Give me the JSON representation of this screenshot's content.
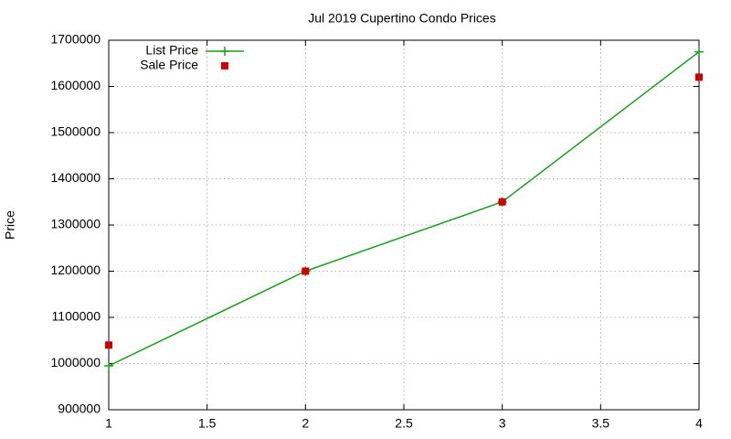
{
  "chart_data": {
    "type": "line",
    "title": "Jul 2019 Cupertino Condo Prices",
    "y_label": "Price",
    "x": [
      1,
      2,
      3,
      4
    ],
    "series": [
      {
        "name": "List Price",
        "color": "#1a9f1a",
        "marker": "plus",
        "line": true,
        "values": [
          995000,
          1200000,
          1350000,
          1675000
        ]
      },
      {
        "name": "Sale Price",
        "color": "#cc0000",
        "marker": "square",
        "line": false,
        "values": [
          1040000,
          1200000,
          1350000,
          1620000
        ]
      }
    ],
    "xlim": [
      1,
      4
    ],
    "xticks": [
      1,
      1.5,
      2,
      2.5,
      3,
      3.5,
      4
    ],
    "ylim": [
      900000,
      1700000
    ],
    "yticks": [
      900000,
      1000000,
      1100000,
      1200000,
      1300000,
      1400000,
      1500000,
      1600000,
      1700000
    ],
    "grid": true,
    "legend_position": "top-left"
  }
}
